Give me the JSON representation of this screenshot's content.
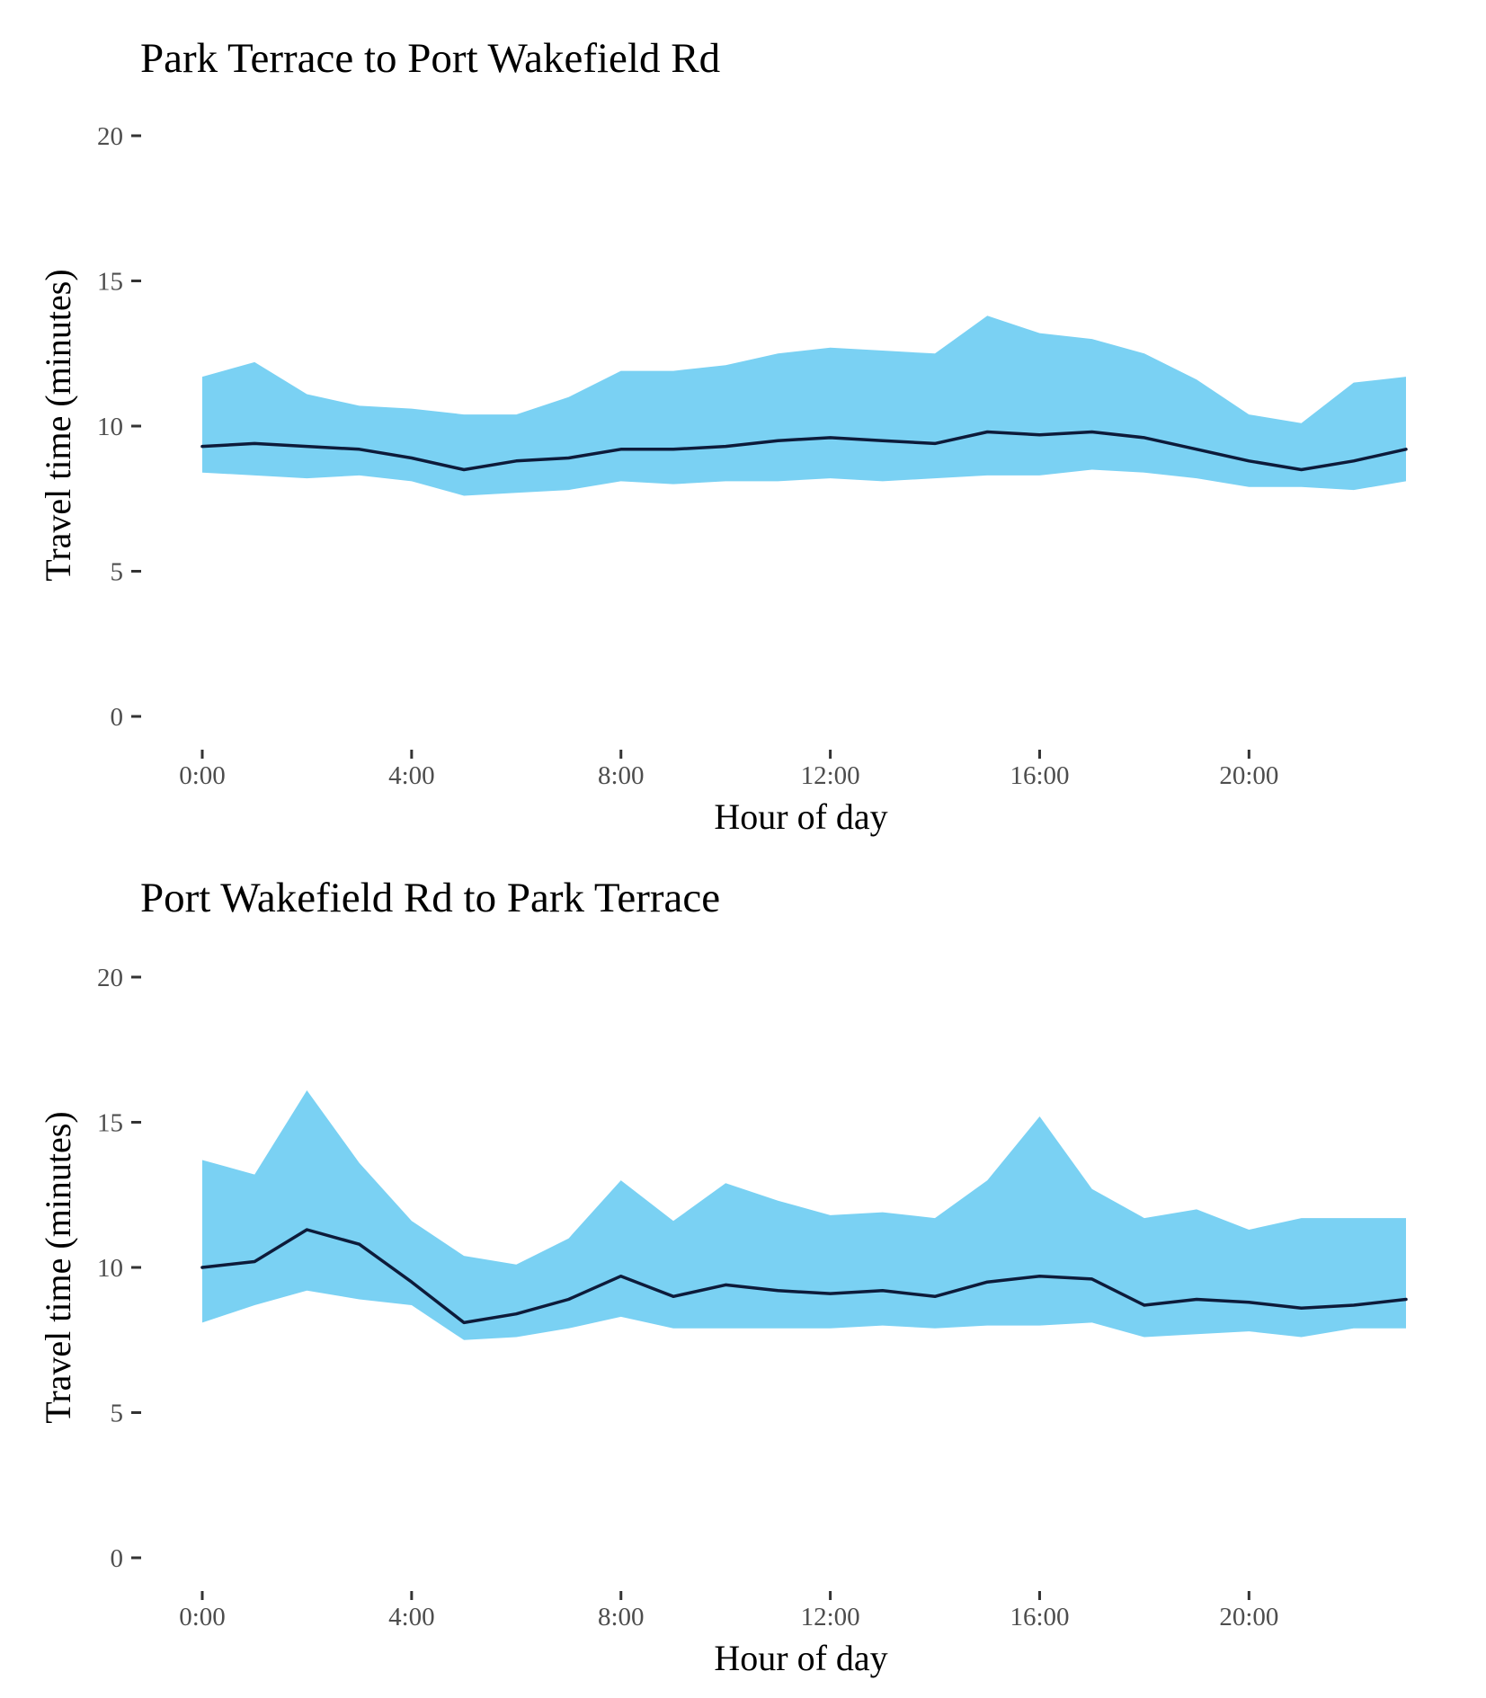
{
  "chart_data": [
    {
      "type": "area",
      "title": "Park Terrace to Port Wakefield Rd",
      "xlabel": "Hour of day",
      "ylabel": "Travel time (minutes)",
      "ylim": [
        0,
        20
      ],
      "yticks": [
        0,
        5,
        10,
        15,
        20
      ],
      "xticks": [
        {
          "value": 0,
          "label": "0:00"
        },
        {
          "value": 4,
          "label": "4:00"
        },
        {
          "value": 8,
          "label": "8:00"
        },
        {
          "value": 12,
          "label": "12:00"
        },
        {
          "value": 16,
          "label": "16:00"
        },
        {
          "value": 20,
          "label": "20:00"
        }
      ],
      "grid": false,
      "x": [
        0,
        1,
        2,
        3,
        4,
        5,
        6,
        7,
        8,
        9,
        10,
        11,
        12,
        13,
        14,
        15,
        16,
        17,
        18,
        19,
        20,
        21,
        22,
        23
      ],
      "band_upper": [
        11.7,
        12.2,
        11.1,
        10.7,
        10.6,
        10.4,
        10.4,
        11.0,
        11.9,
        11.9,
        12.1,
        12.5,
        12.7,
        12.6,
        12.5,
        13.8,
        13.2,
        13.0,
        12.5,
        11.6,
        10.4,
        10.1,
        11.5,
        11.7
      ],
      "band_lower": [
        8.4,
        8.3,
        8.2,
        8.3,
        8.1,
        7.6,
        7.7,
        7.8,
        8.1,
        8.0,
        8.1,
        8.1,
        8.2,
        8.1,
        8.2,
        8.3,
        8.3,
        8.5,
        8.4,
        8.2,
        7.9,
        7.9,
        7.8,
        8.1
      ],
      "line": [
        9.3,
        9.4,
        9.3,
        9.2,
        8.9,
        8.5,
        8.8,
        8.9,
        9.2,
        9.2,
        9.3,
        9.5,
        9.6,
        9.5,
        9.4,
        9.8,
        9.7,
        9.8,
        9.6,
        9.2,
        8.8,
        8.5,
        8.8,
        9.2
      ],
      "colors": {
        "band": "#7ad1f3",
        "line": "#0d1b3a"
      }
    },
    {
      "type": "area",
      "title": "Port Wakefield Rd to Park Terrace",
      "xlabel": "Hour of day",
      "ylabel": "Travel time (minutes)",
      "ylim": [
        0,
        20
      ],
      "yticks": [
        0,
        5,
        10,
        15,
        20
      ],
      "xticks": [
        {
          "value": 0,
          "label": "0:00"
        },
        {
          "value": 4,
          "label": "4:00"
        },
        {
          "value": 8,
          "label": "8:00"
        },
        {
          "value": 12,
          "label": "12:00"
        },
        {
          "value": 16,
          "label": "16:00"
        },
        {
          "value": 20,
          "label": "20:00"
        }
      ],
      "grid": false,
      "x": [
        0,
        1,
        2,
        3,
        4,
        5,
        6,
        7,
        8,
        9,
        10,
        11,
        12,
        13,
        14,
        15,
        16,
        17,
        18,
        19,
        20,
        21,
        22,
        23
      ],
      "band_upper": [
        13.7,
        13.2,
        16.1,
        13.6,
        11.6,
        10.4,
        10.1,
        11.0,
        13.0,
        11.6,
        12.9,
        12.3,
        11.8,
        11.9,
        11.7,
        13.0,
        15.2,
        12.7,
        11.7,
        12.0,
        11.3,
        11.7,
        11.7,
        11.7
      ],
      "band_lower": [
        8.1,
        8.7,
        9.2,
        8.9,
        8.7,
        7.5,
        7.6,
        7.9,
        8.3,
        7.9,
        7.9,
        7.9,
        7.9,
        8.0,
        7.9,
        8.0,
        8.0,
        8.1,
        7.6,
        7.7,
        7.8,
        7.6,
        7.9,
        7.9
      ],
      "line": [
        10.0,
        10.2,
        11.3,
        10.8,
        9.5,
        8.1,
        8.4,
        8.9,
        9.7,
        9.0,
        9.4,
        9.2,
        9.1,
        9.2,
        9.0,
        9.5,
        9.7,
        9.6,
        8.7,
        8.9,
        8.8,
        8.6,
        8.7,
        8.9
      ],
      "colors": {
        "band": "#7ad1f3",
        "line": "#0d1b3a"
      }
    }
  ]
}
